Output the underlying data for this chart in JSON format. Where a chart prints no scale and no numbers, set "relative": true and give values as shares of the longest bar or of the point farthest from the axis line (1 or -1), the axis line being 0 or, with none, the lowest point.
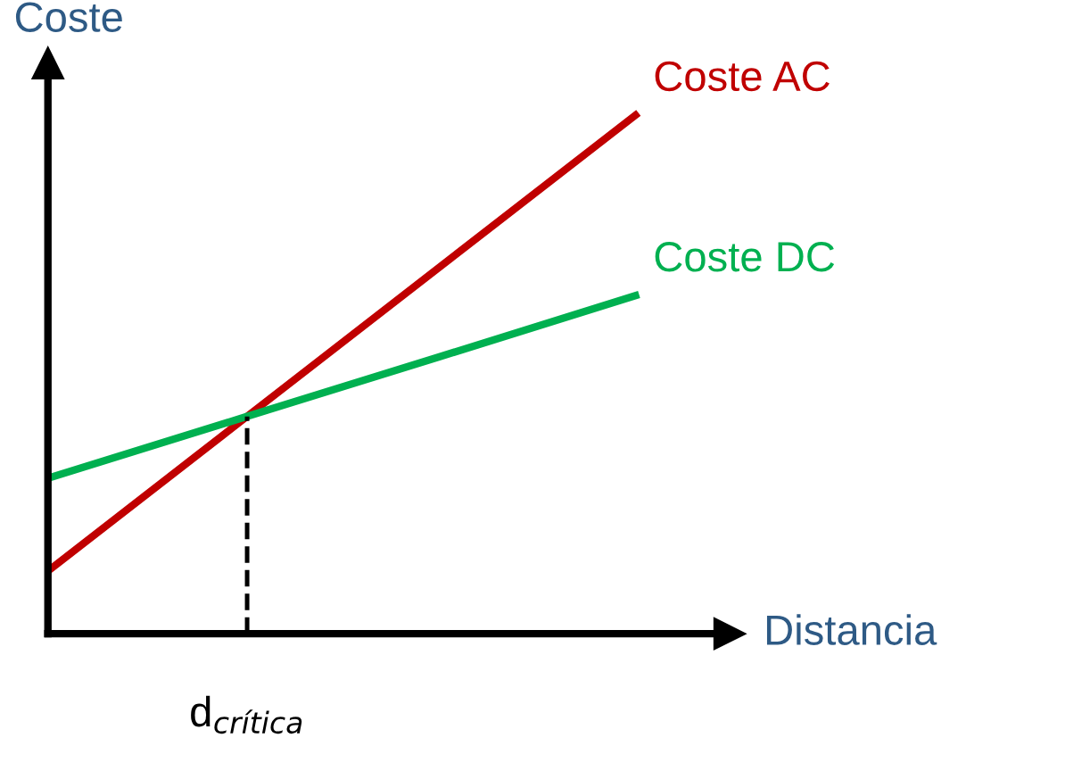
{
  "chart_data": {
    "type": "line",
    "relative": true,
    "xlabel": "Distancia",
    "ylabel": "Coste",
    "categories": [
      null,
      null,
      null,
      null
    ],
    "series": [
      {
        "name": "Coste AC",
        "color": "#c00000",
        "values": [
          0.121,
          0.414,
          0.707,
          1
        ]
      },
      {
        "name": "Coste DC",
        "color": "#00b050",
        "values": [
          0.3,
          0.417,
          0.534,
          0.652
        ]
      }
    ],
    "annotations": [
      "d$_{crítica}$"
    ],
    "legend": false,
    "marker": "none",
    "line_style": "solid"
  }
}
